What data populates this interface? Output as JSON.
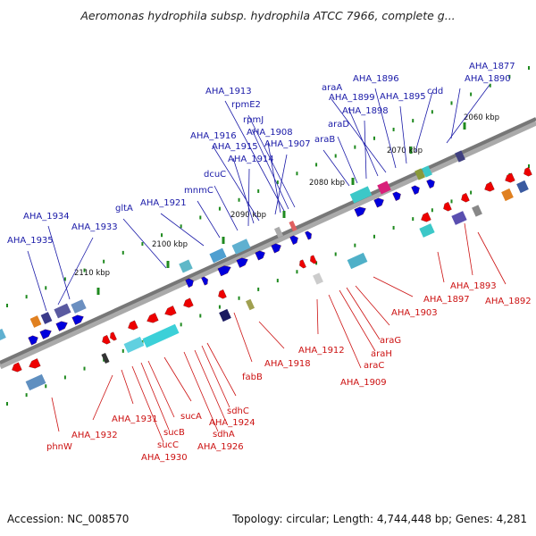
{
  "title": "Aeromonas hydrophila subsp. hydrophila ATCC 7966, complete g...",
  "footer": {
    "accession": "Accession: NC_008570",
    "topology": "Topology: circular; Length: 4,744,448 bp; Genes: 4,281"
  },
  "colors": {
    "forward_gene": "#0000dd",
    "reverse_gene": "#ee0000",
    "forward_label": "#1a1aa8",
    "reverse_label": "#cc1111",
    "backbone": "#777777",
    "tick": "#1f8a1f"
  },
  "scale": [
    "2060 kbp",
    "2070 kbp",
    "2080 kbp",
    "2090 kbp",
    "2100 kbp",
    "2110 kbp"
  ],
  "forward_labels": [
    "AHA_1877",
    "AHA_1890",
    "cdd",
    "AHA_1895",
    "AHA_1896",
    "araA",
    "AHA_1899",
    "AHA_1898",
    "araD",
    "araB",
    "rpmE2",
    "rpmJ",
    "AHA_1913",
    "AHA_1908",
    "AHA_1907",
    "AHA_1916",
    "AHA_1915",
    "AHA_1914",
    "dcuC",
    "mnmC",
    "AHA_1921",
    "gltA",
    "AHA_1934",
    "AHA_1933",
    "AHA_1935"
  ],
  "reverse_labels": [
    "AHA_1892",
    "AHA_1893",
    "AHA_1897",
    "AHA_1903",
    "araG",
    "araH",
    "araC",
    "AHA_1909",
    "AHA_1912",
    "AHA_1918",
    "fabB",
    "sdhC",
    "AHA_1924",
    "sdhA",
    "AHA_1926",
    "sucA",
    "sucB",
    "sucC",
    "AHA_1930",
    "AHA_1931",
    "AHA_1932",
    "phnW"
  ]
}
